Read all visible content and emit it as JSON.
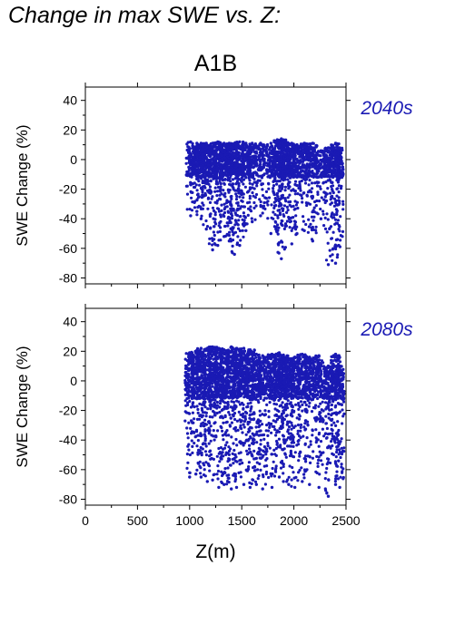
{
  "figure": {
    "title": "Change in max SWE vs. Z:",
    "scenario": "A1B",
    "point_color": "#1a1ab4"
  },
  "chart_data": [
    {
      "type": "scatter",
      "period_label": "2040s",
      "xlabel": "Z(m)",
      "ylabel": "SWE Change (%)",
      "xlim": [
        0,
        2500
      ],
      "ylim": [
        -84,
        49
      ],
      "xticks": [
        0,
        500,
        1000,
        1500,
        2000,
        2500
      ],
      "yticks": [
        -80,
        -60,
        -40,
        -20,
        0,
        20,
        40
      ],
      "show_xtick_labels": false,
      "grid": false,
      "columns": [
        {
          "z": 1010,
          "ymin": -38,
          "ymax": 12
        },
        {
          "z": 1070,
          "ymin": -35,
          "ymax": 11
        },
        {
          "z": 1110,
          "ymin": -40,
          "ymax": 11
        },
        {
          "z": 1160,
          "ymin": -47,
          "ymax": 11
        },
        {
          "z": 1220,
          "ymin": -61,
          "ymax": 11
        },
        {
          "z": 1270,
          "ymin": -58,
          "ymax": 12
        },
        {
          "z": 1330,
          "ymin": -52,
          "ymax": 11
        },
        {
          "z": 1380,
          "ymin": -55,
          "ymax": 11
        },
        {
          "z": 1430,
          "ymin": -64,
          "ymax": 11
        },
        {
          "z": 1480,
          "ymin": -58,
          "ymax": 12
        },
        {
          "z": 1540,
          "ymin": -48,
          "ymax": 11
        },
        {
          "z": 1600,
          "ymin": -42,
          "ymax": 11
        },
        {
          "z": 1680,
          "ymin": -38,
          "ymax": 11
        },
        {
          "z": 1780,
          "ymin": -50,
          "ymax": 11
        },
        {
          "z": 1850,
          "ymin": -57,
          "ymax": 13
        },
        {
          "z": 1880,
          "ymin": -67,
          "ymax": 14
        },
        {
          "z": 1920,
          "ymin": -45,
          "ymax": 12
        },
        {
          "z": 1980,
          "ymin": -57,
          "ymax": 11
        },
        {
          "z": 2030,
          "ymin": -50,
          "ymax": 10
        },
        {
          "z": 2100,
          "ymin": -48,
          "ymax": 11
        },
        {
          "z": 2180,
          "ymin": -55,
          "ymax": 11
        },
        {
          "z": 2260,
          "ymin": -40,
          "ymax": 6
        },
        {
          "z": 2330,
          "ymin": -71,
          "ymax": 8
        },
        {
          "z": 2400,
          "ymin": -70,
          "ymax": 11
        },
        {
          "z": 2430,
          "ymin": -58,
          "ymax": 8
        }
      ]
    },
    {
      "type": "scatter",
      "period_label": "2080s",
      "xlabel": "Z(m)",
      "ylabel": "SWE Change (%)",
      "xlim": [
        0,
        2500
      ],
      "ylim": [
        -84,
        49
      ],
      "xticks": [
        0,
        500,
        1000,
        1500,
        2000,
        2500
      ],
      "yticks": [
        -80,
        -60,
        -40,
        -20,
        0,
        20,
        40
      ],
      "show_xtick_labels": true,
      "grid": false,
      "columns": [
        {
          "z": 1000,
          "ymin": -65,
          "ymax": 19
        },
        {
          "z": 1060,
          "ymin": -63,
          "ymax": 20
        },
        {
          "z": 1110,
          "ymin": -65,
          "ymax": 22
        },
        {
          "z": 1170,
          "ymin": -68,
          "ymax": 22
        },
        {
          "z": 1220,
          "ymin": -67,
          "ymax": 23
        },
        {
          "z": 1280,
          "ymin": -72,
          "ymax": 22
        },
        {
          "z": 1330,
          "ymin": -70,
          "ymax": 21
        },
        {
          "z": 1400,
          "ymin": -73,
          "ymax": 23
        },
        {
          "z": 1450,
          "ymin": -72,
          "ymax": 22
        },
        {
          "z": 1520,
          "ymin": -70,
          "ymax": 22
        },
        {
          "z": 1580,
          "ymin": -72,
          "ymax": 21
        },
        {
          "z": 1640,
          "ymin": -70,
          "ymax": 18
        },
        {
          "z": 1700,
          "ymin": -73,
          "ymax": 17
        },
        {
          "z": 1790,
          "ymin": -72,
          "ymax": 18
        },
        {
          "z": 1860,
          "ymin": -65,
          "ymax": 19
        },
        {
          "z": 1900,
          "ymin": -68,
          "ymax": 17
        },
        {
          "z": 1950,
          "ymin": -70,
          "ymax": 15
        },
        {
          "z": 2010,
          "ymin": -72,
          "ymax": 16
        },
        {
          "z": 2080,
          "ymin": -68,
          "ymax": 18
        },
        {
          "z": 2150,
          "ymin": -70,
          "ymax": 16
        },
        {
          "z": 2240,
          "ymin": -72,
          "ymax": 17
        },
        {
          "z": 2330,
          "ymin": -78,
          "ymax": 10
        },
        {
          "z": 2400,
          "ymin": -70,
          "ymax": 18
        },
        {
          "z": 2440,
          "ymin": -72,
          "ymax": 10
        }
      ]
    }
  ]
}
